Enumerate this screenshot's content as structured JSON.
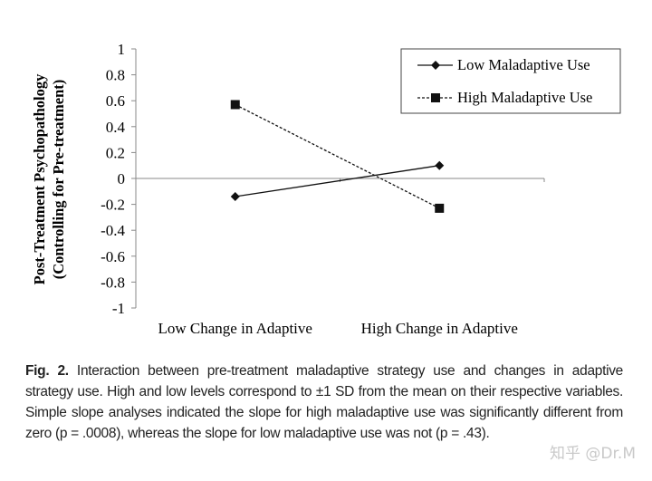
{
  "chart_data": {
    "type": "line",
    "title": "",
    "xlabel": "",
    "ylabel": [
      "Post-Treatment Psychopathology",
      "(Controlling for Pre-treatment)"
    ],
    "categories": [
      "Low Change in Adaptive",
      "High Change in Adaptive"
    ],
    "ylim": [
      -1,
      1
    ],
    "yticks": [
      1,
      0.8,
      0.6,
      0.4,
      0.2,
      0,
      -0.2,
      -0.4,
      -0.6,
      -0.8,
      -1
    ],
    "ytick_labels": [
      "1",
      "0.8",
      "0.6",
      "0.4",
      "0.2",
      "0",
      "-0.2",
      "-0.4",
      "-0.6",
      "-0.8",
      "-1"
    ],
    "grid": false,
    "legend_position": "top-right",
    "series": [
      {
        "name": "Low Maladaptive Use",
        "values": [
          -0.14,
          0.1
        ],
        "line": "solid",
        "marker": "diamond"
      },
      {
        "name": "High Maladaptive Use",
        "values": [
          0.57,
          -0.23
        ],
        "line": "dashed",
        "marker": "square"
      }
    ]
  },
  "caption": {
    "label": "Fig. 2.",
    "text": " Interaction between pre-treatment maladaptive strategy use and changes in adaptive strategy use. High and low levels correspond to ±1 SD from the mean on their respective variables. Simple slope analyses indicated the slope for high maladaptive use was significantly different from zero (p = .0008), whereas the slope for low maladaptive use was not (p = .43)."
  },
  "watermark": "知乎 @Dr.M"
}
